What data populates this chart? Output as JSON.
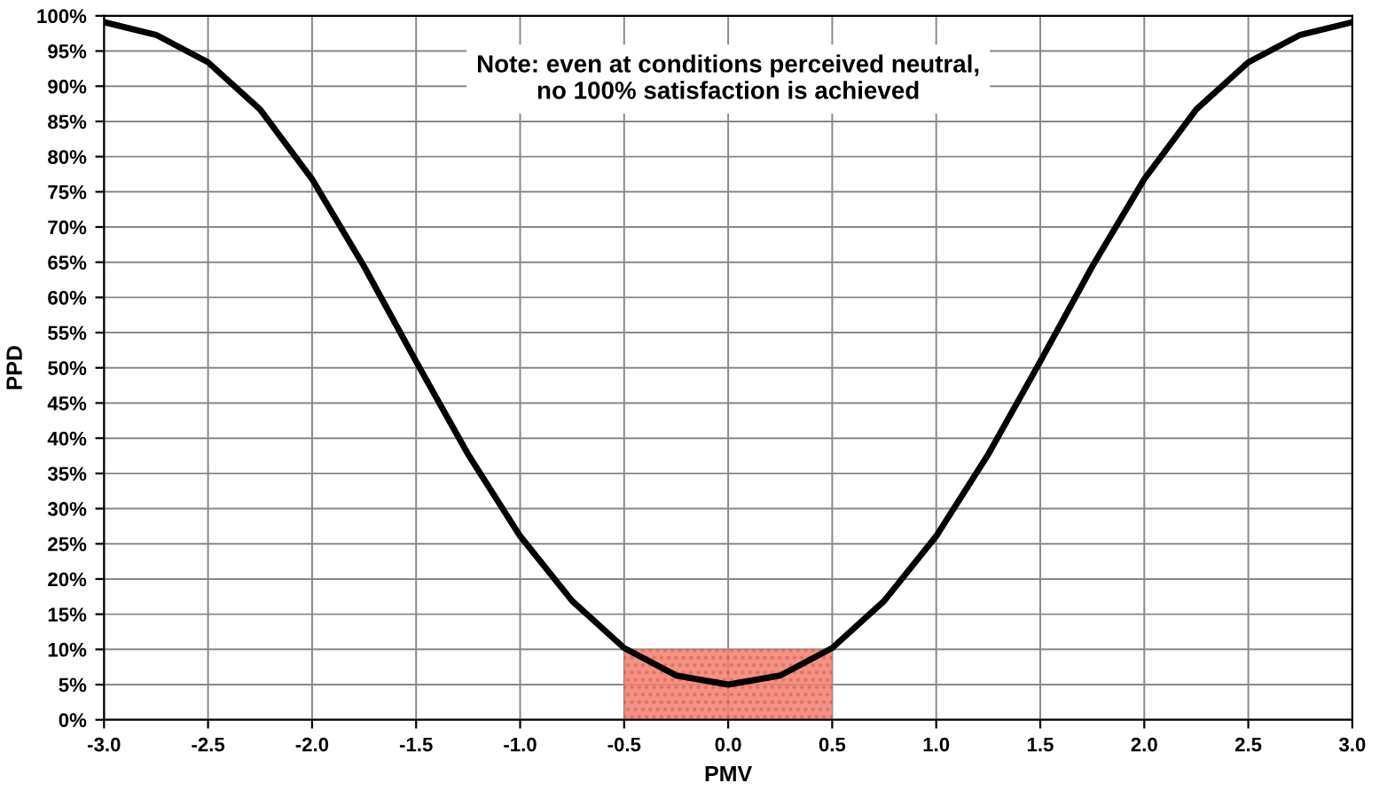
{
  "chart_data": {
    "type": "line",
    "xlabel": "PMV",
    "ylabel": "PPD",
    "annotations": [
      "Note: even at conditions perceived neutral,\nno 100% satisfaction is achieved"
    ],
    "series": [
      {
        "type": "area",
        "color": "#f08070",
        "x": [
          -0.5,
          0.5
        ],
        "values": [
          10,
          10
        ]
      },
      {
        "color": "#000000",
        "x": [
          -3.0,
          -2.75,
          -2.5,
          -2.25,
          -2.0,
          -1.75,
          -1.5,
          -1.25,
          -1.0,
          -0.75,
          -0.5,
          -0.25,
          0.0,
          0.25,
          0.5,
          0.75,
          1.0,
          1.25,
          1.5,
          1.75,
          2.0,
          2.25,
          2.5,
          2.75,
          3.0
        ],
        "values": [
          99.1,
          97.3,
          93.4,
          86.7,
          76.8,
          64.4,
          50.9,
          37.7,
          26.1,
          16.9,
          10.2,
          6.3,
          5.0,
          6.3,
          10.2,
          16.9,
          26.1,
          37.7,
          50.9,
          64.4,
          76.8,
          86.7,
          93.4,
          97.3,
          99.1
        ]
      }
    ],
    "xlim": [
      -3.0,
      3.0
    ],
    "xticks": [
      {
        "value": -3.0,
        "label": "-3.0"
      },
      {
        "value": -2.5,
        "label": "-2.5"
      },
      {
        "value": -2.0,
        "label": "-2.0"
      },
      {
        "value": -1.5,
        "label": "-1.5"
      },
      {
        "value": -1.0,
        "label": "-1.0"
      },
      {
        "value": -0.5,
        "label": "-0.5"
      },
      {
        "value": 0.0,
        "label": "0.0"
      },
      {
        "value": 0.5,
        "label": "0.5"
      },
      {
        "value": 1.0,
        "label": "1.0"
      },
      {
        "value": 1.5,
        "label": "1.5"
      },
      {
        "value": 2.0,
        "label": "2.0"
      },
      {
        "value": 2.5,
        "label": "2.5"
      },
      {
        "value": 3.0,
        "label": "3.0"
      }
    ],
    "ylim": [
      0,
      100
    ],
    "yticks": [
      {
        "value": 0,
        "label": "0%"
      },
      {
        "value": 5,
        "label": "5%"
      },
      {
        "value": 10,
        "label": "10%"
      },
      {
        "value": 15,
        "label": "15%"
      },
      {
        "value": 20,
        "label": "20%"
      },
      {
        "value": 25,
        "label": "25%"
      },
      {
        "value": 30,
        "label": "30%"
      },
      {
        "value": 35,
        "label": "35%"
      },
      {
        "value": 40,
        "label": "40%"
      },
      {
        "value": 45,
        "label": "45%"
      },
      {
        "value": 50,
        "label": "50%"
      },
      {
        "value": 55,
        "label": "55%"
      },
      {
        "value": 60,
        "label": "60%"
      },
      {
        "value": 65,
        "label": "65%"
      },
      {
        "value": 70,
        "label": "70%"
      },
      {
        "value": 75,
        "label": "75%"
      },
      {
        "value": 80,
        "label": "80%"
      },
      {
        "value": 85,
        "label": "85%"
      },
      {
        "value": 90,
        "label": "90%"
      },
      {
        "value": 95,
        "label": "95%"
      },
      {
        "value": 100,
        "label": "100%"
      }
    ],
    "grid": true,
    "line_style": "solid",
    "marker": "none"
  }
}
